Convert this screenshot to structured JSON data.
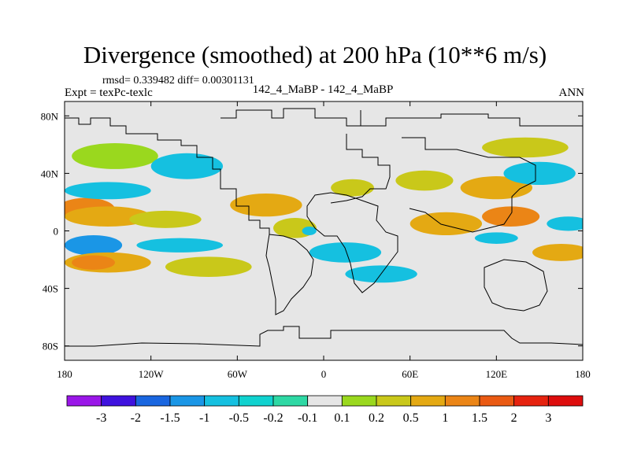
{
  "header": {
    "title": "Divergence (smoothed) at 200 hPa (10**6 m/s)",
    "stats": "rmsd= 0.339482 diff= 0.00301131",
    "experiment": "Expt = texPc-texlc",
    "case": "142_4_MaBP - 142_4_MaBP",
    "season": "ANN"
  },
  "chart_data": {
    "type": "heatmap",
    "title": "Divergence (smoothed) at 200 hPa (10**6 m/s)",
    "x_ticks": [
      {
        "value": -180,
        "label": "180"
      },
      {
        "value": -120,
        "label": "120W"
      },
      {
        "value": -60,
        "label": "60W"
      },
      {
        "value": 0,
        "label": "0"
      },
      {
        "value": 60,
        "label": "60E"
      },
      {
        "value": 120,
        "label": "120E"
      },
      {
        "value": 180,
        "label": "180"
      }
    ],
    "y_ticks": [
      {
        "value": 80,
        "label": "80N"
      },
      {
        "value": 40,
        "label": "40N"
      },
      {
        "value": 0,
        "label": "0"
      },
      {
        "value": -40,
        "label": "40S"
      },
      {
        "value": -80,
        "label": "80S"
      }
    ],
    "xlim": [
      -180,
      180
    ],
    "ylim": [
      -90,
      90
    ],
    "colorbar": {
      "labels": [
        "-3",
        "-2",
        "-1.5",
        "-1",
        "-0.5",
        "-0.2",
        "-0.1",
        "0.1",
        "0.2",
        "0.5",
        "1",
        "1.5",
        "2",
        "3"
      ],
      "colors": [
        "#9a16e8",
        "#3f12de",
        "#1966e0",
        "#1a96e6",
        "#15c0e0",
        "#10d2cf",
        "#2ed8a4",
        "#e6e6e6",
        "#9ad81e",
        "#c9c81a",
        "#e4a913",
        "#eb8516",
        "#ea5a13",
        "#e6230f",
        "#dd0d0d"
      ]
    },
    "field": [
      {
        "lon": -165,
        "lat": 15,
        "rx": 20,
        "ry": 8,
        "bin": 11
      },
      {
        "lon": -150,
        "lat": 10,
        "rx": 30,
        "ry": 7,
        "bin": 10
      },
      {
        "lon": -150,
        "lat": 28,
        "rx": 30,
        "ry": 6,
        "bin": 4
      },
      {
        "lon": -160,
        "lat": -10,
        "rx": 20,
        "ry": 7,
        "bin": 3
      },
      {
        "lon": -150,
        "lat": -22,
        "rx": 30,
        "ry": 7,
        "bin": 10
      },
      {
        "lon": -160,
        "lat": -22,
        "rx": 15,
        "ry": 5,
        "bin": 11
      },
      {
        "lon": -145,
        "lat": 52,
        "rx": 30,
        "ry": 9,
        "bin": 8
      },
      {
        "lon": -95,
        "lat": 45,
        "rx": 25,
        "ry": 9,
        "bin": 4
      },
      {
        "lon": -110,
        "lat": 8,
        "rx": 25,
        "ry": 6,
        "bin": 9
      },
      {
        "lon": -100,
        "lat": -10,
        "rx": 30,
        "ry": 5,
        "bin": 4
      },
      {
        "lon": -80,
        "lat": -25,
        "rx": 30,
        "ry": 7,
        "bin": 9
      },
      {
        "lon": -40,
        "lat": 18,
        "rx": 25,
        "ry": 8,
        "bin": 10
      },
      {
        "lon": -20,
        "lat": 2,
        "rx": 15,
        "ry": 7,
        "bin": 9
      },
      {
        "lon": -10,
        "lat": 0,
        "rx": 5,
        "ry": 3,
        "bin": 4
      },
      {
        "lon": 20,
        "lat": 30,
        "rx": 15,
        "ry": 6,
        "bin": 9
      },
      {
        "lon": 15,
        "lat": -15,
        "rx": 25,
        "ry": 7,
        "bin": 4
      },
      {
        "lon": 40,
        "lat": -30,
        "rx": 25,
        "ry": 6,
        "bin": 4
      },
      {
        "lon": 70,
        "lat": 35,
        "rx": 20,
        "ry": 7,
        "bin": 9
      },
      {
        "lon": 85,
        "lat": 5,
        "rx": 25,
        "ry": 8,
        "bin": 10
      },
      {
        "lon": 120,
        "lat": 30,
        "rx": 25,
        "ry": 8,
        "bin": 10
      },
      {
        "lon": 130,
        "lat": 10,
        "rx": 20,
        "ry": 7,
        "bin": 11
      },
      {
        "lon": 120,
        "lat": -5,
        "rx": 15,
        "ry": 4,
        "bin": 4
      },
      {
        "lon": 150,
        "lat": 40,
        "rx": 25,
        "ry": 8,
        "bin": 4
      },
      {
        "lon": 140,
        "lat": 58,
        "rx": 30,
        "ry": 7,
        "bin": 9
      },
      {
        "lon": 165,
        "lat": -15,
        "rx": 20,
        "ry": 6,
        "bin": 10
      },
      {
        "lon": 170,
        "lat": 5,
        "rx": 15,
        "ry": 5,
        "bin": 4
      }
    ]
  }
}
